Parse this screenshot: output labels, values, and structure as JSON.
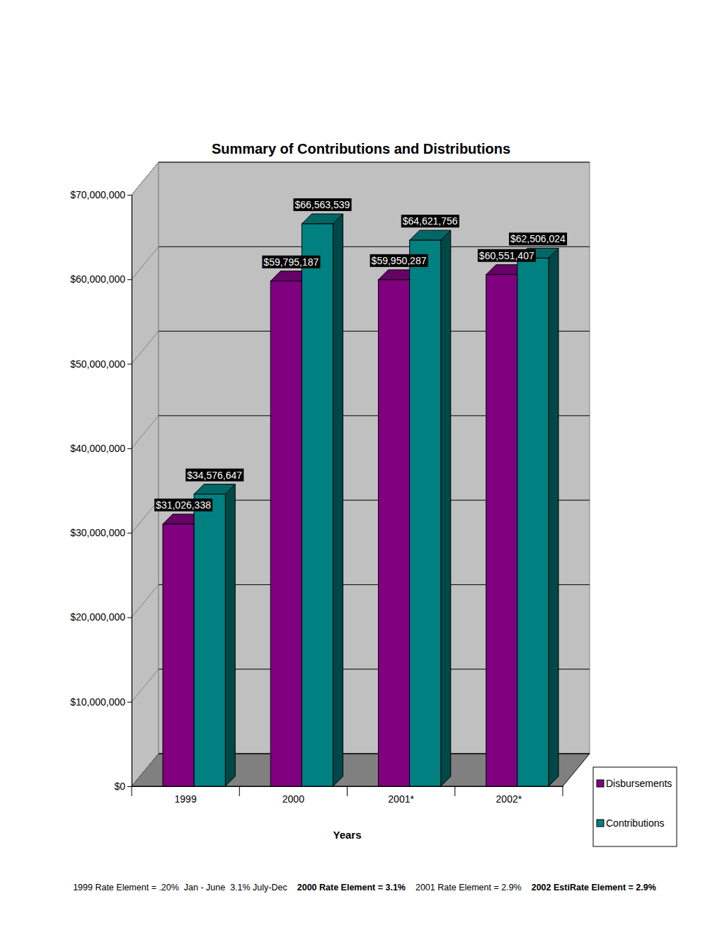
{
  "chart_data": {
    "type": "bar",
    "title": "Summary of Contributions and Distributions",
    "x_label": "Years",
    "categories": [
      "1999",
      "2000",
      "2001*",
      "2002*"
    ],
    "series": [
      {
        "name": "Disbursements",
        "color": "#800080",
        "values": [
          31026338,
          59795187,
          59950287,
          60551407
        ],
        "value_labels": [
          "$31,026,338",
          "$59,795,187",
          "$59,950,287",
          "$60,551,407"
        ]
      },
      {
        "name": "Contributions",
        "color": "#008080",
        "values": [
          34576647,
          66563539,
          64621756,
          62506024
        ],
        "value_labels": [
          "$34,576,647",
          "$66,563,539",
          "$64,621,756",
          "$62,506,024"
        ]
      }
    ],
    "ylim": [
      0,
      70000000
    ],
    "yticks": [
      {
        "value": 0,
        "label": "$0"
      },
      {
        "value": 10000000,
        "label": "$10,000,000"
      },
      {
        "value": 20000000,
        "label": "$20,000,000"
      },
      {
        "value": 30000000,
        "label": "$30,000,000"
      },
      {
        "value": 40000000,
        "label": "$40,000,000"
      },
      {
        "value": 50000000,
        "label": "$50,000,000"
      },
      {
        "value": 60000000,
        "label": "$60,000,000"
      },
      {
        "value": 70000000,
        "label": "$70,000,000"
      }
    ],
    "grid": true,
    "data_labels": true,
    "legend": "bottom-right",
    "annotations": [
      "1999 Rate Element = .20%  Jan - June  3.1% July-Dec",
      "2000 Rate Element = 3.1%",
      "2001 Rate Element = 2.9%",
      "2002 EstiRate Element = 2.9%"
    ]
  }
}
